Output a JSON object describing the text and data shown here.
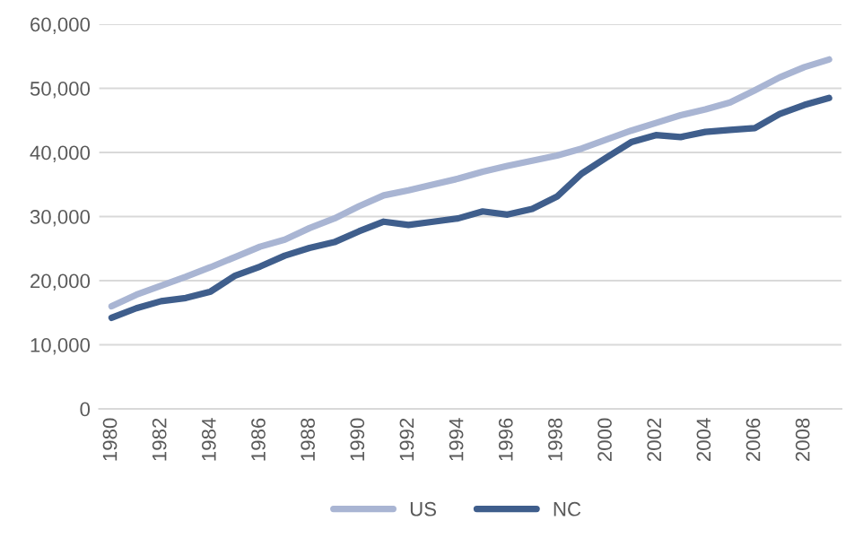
{
  "chart_data": {
    "type": "line",
    "categories": [
      "1980",
      null,
      "1982",
      null,
      "1984",
      null,
      "1986",
      null,
      "1988",
      null,
      "1990",
      null,
      "1992",
      null,
      "1994",
      null,
      "1996",
      null,
      "1998",
      null,
      "2000",
      null,
      "2002",
      null,
      "2004",
      null,
      "2006",
      null,
      "2008",
      null
    ],
    "series": [
      {
        "name": "US",
        "color": "#a9b5d3",
        "values": [
          16000,
          17800,
          19200,
          20600,
          22100,
          23700,
          25300,
          26400,
          28200,
          29700,
          31600,
          33300,
          34100,
          35000,
          35900,
          37000,
          37900,
          38700,
          39500,
          40600,
          42000,
          43400,
          44600,
          45800,
          46700,
          47800,
          49700,
          51700,
          53300,
          54500
        ]
      },
      {
        "name": "NC",
        "color": "#3f5e8c",
        "values": [
          14200,
          15700,
          16800,
          17300,
          18300,
          20800,
          22200,
          23900,
          25100,
          26000,
          27700,
          29200,
          28700,
          29200,
          29700,
          30800,
          30300,
          31200,
          33100,
          36700,
          39200,
          41600,
          42700,
          42400,
          43200,
          43500,
          43800,
          46000,
          47400,
          48500
        ]
      }
    ],
    "ylim": [
      0,
      60000
    ],
    "yticks": [
      {
        "value": 0,
        "label": "0"
      },
      {
        "value": 10000,
        "label": "10,000"
      },
      {
        "value": 20000,
        "label": "20,000"
      },
      {
        "value": 30000,
        "label": "30,000"
      },
      {
        "value": 40000,
        "label": "40,000"
      },
      {
        "value": 50000,
        "label": "50,000"
      },
      {
        "value": 60000,
        "label": "60,000"
      }
    ],
    "grid": "y",
    "legend": "bottom",
    "marker": "none",
    "line_style": "solid"
  }
}
